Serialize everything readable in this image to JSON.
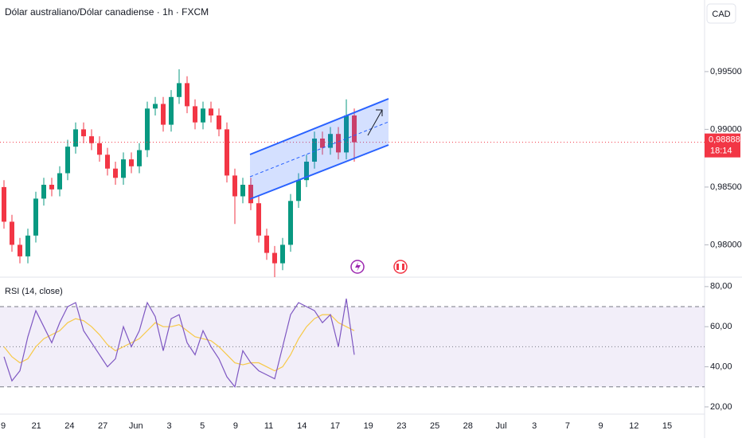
{
  "header": {
    "title": "Dólar australiano/Dólar canadiense · 1h · FXCM",
    "currency": "CAD"
  },
  "chart_data": [
    {
      "type": "candlestick",
      "up_color": "#089981",
      "down_color": "#f23645",
      "open": [
        0.985,
        0.982,
        0.98,
        0.979,
        0.9808,
        0.984,
        0.9852,
        0.9848,
        0.9862,
        0.9885,
        0.99,
        0.9894,
        0.9888,
        0.9878,
        0.9866,
        0.9858,
        0.9874,
        0.9868,
        0.9882,
        0.9918,
        0.9922,
        0.9904,
        0.9928,
        0.994,
        0.992,
        0.9906,
        0.9918,
        0.9912,
        0.99,
        0.986,
        0.9842,
        0.9852,
        0.9836,
        0.9808,
        0.9793,
        0.9784,
        0.98,
        0.9838,
        0.9856,
        0.9872,
        0.9892,
        0.9884,
        0.9896,
        0.988,
        0.9912
      ],
      "high": [
        0.9856,
        0.9826,
        0.9806,
        0.9814,
        0.9846,
        0.9858,
        0.9858,
        0.9868,
        0.9891,
        0.9906,
        0.9906,
        0.99,
        0.9894,
        0.9884,
        0.9872,
        0.988,
        0.988,
        0.9888,
        0.9924,
        0.9928,
        0.9928,
        0.9934,
        0.9952,
        0.9946,
        0.9926,
        0.9924,
        0.9924,
        0.9918,
        0.9906,
        0.9866,
        0.9858,
        0.9858,
        0.9842,
        0.9814,
        0.9799,
        0.9806,
        0.9844,
        0.9862,
        0.9878,
        0.9898,
        0.9898,
        0.9902,
        0.9902,
        0.9926,
        0.9918
      ],
      "low": [
        0.9814,
        0.9794,
        0.9784,
        0.9784,
        0.9802,
        0.9834,
        0.9842,
        0.9842,
        0.9856,
        0.9879,
        0.9888,
        0.9882,
        0.9872,
        0.986,
        0.9852,
        0.9852,
        0.9862,
        0.9862,
        0.9876,
        0.9912,
        0.9898,
        0.9898,
        0.9922,
        0.9914,
        0.99,
        0.99,
        0.9906,
        0.9894,
        0.9854,
        0.9818,
        0.9836,
        0.983,
        0.9802,
        0.9787,
        0.9772,
        0.9778,
        0.9794,
        0.9832,
        0.985,
        0.9866,
        0.9878,
        0.9878,
        0.9874,
        0.9874,
        0.9872
      ],
      "close": [
        0.982,
        0.98,
        0.979,
        0.9808,
        0.984,
        0.9852,
        0.9848,
        0.9862,
        0.9885,
        0.99,
        0.9894,
        0.9888,
        0.9878,
        0.9866,
        0.9858,
        0.9874,
        0.9868,
        0.9882,
        0.9918,
        0.9922,
        0.9904,
        0.9928,
        0.994,
        0.992,
        0.9906,
        0.9918,
        0.9912,
        0.99,
        0.986,
        0.9842,
        0.9852,
        0.9836,
        0.9808,
        0.9793,
        0.9784,
        0.98,
        0.9838,
        0.9856,
        0.9872,
        0.9892,
        0.9884,
        0.9896,
        0.988,
        0.9912,
        0.98888
      ],
      "ylim": [
        0.9772,
        1.0012
      ],
      "yticks": [
        {
          "value": 0.98,
          "label": "0,98000"
        },
        {
          "value": 0.985,
          "label": "0,98500"
        },
        {
          "value": 0.99,
          "label": "0,99000"
        },
        {
          "value": 0.995,
          "label": "0,99500"
        }
      ],
      "last_price": {
        "value": 0.98888,
        "label": "0,98888"
      },
      "countdown": "18:14"
    },
    {
      "type": "line",
      "title": "RSI (14, close)",
      "color": "#7e57c2",
      "ma_color": "#f7c948",
      "values": [
        45,
        33,
        38,
        55,
        68,
        60,
        52,
        62,
        70,
        72,
        58,
        52,
        46,
        40,
        44,
        60,
        50,
        58,
        72,
        65,
        48,
        64,
        66,
        52,
        46,
        58,
        50,
        44,
        35,
        30,
        48,
        42,
        38,
        36,
        34,
        50,
        66,
        72,
        70,
        68,
        62,
        66,
        50,
        74,
        46
      ],
      "ma_values": [
        50,
        45,
        42,
        44,
        50,
        54,
        56,
        58,
        62,
        64,
        63,
        60,
        56,
        51,
        48,
        50,
        52,
        54,
        58,
        62,
        60,
        60,
        61,
        58,
        55,
        54,
        53,
        50,
        46,
        42,
        41,
        42,
        42,
        40,
        38,
        40,
        46,
        54,
        60,
        64,
        66,
        66,
        62,
        60,
        58
      ],
      "band": [
        30,
        70
      ],
      "mid": 50,
      "ylim": [
        16.4,
        84.7
      ],
      "yticks": [
        {
          "value": 20,
          "label": "20,00"
        },
        {
          "value": 40,
          "label": "40,00"
        },
        {
          "value": 60,
          "label": "60,00"
        },
        {
          "value": 80,
          "label": "80,00"
        }
      ]
    }
  ],
  "x_axis": {
    "categories": [
      "9",
      "21",
      "24",
      "27",
      "Jun",
      "3",
      "5",
      "9",
      "11",
      "14",
      "17",
      "19",
      "23",
      "25",
      "28",
      "Jul",
      "3",
      "7",
      "9",
      "12",
      "15"
    ]
  }
}
